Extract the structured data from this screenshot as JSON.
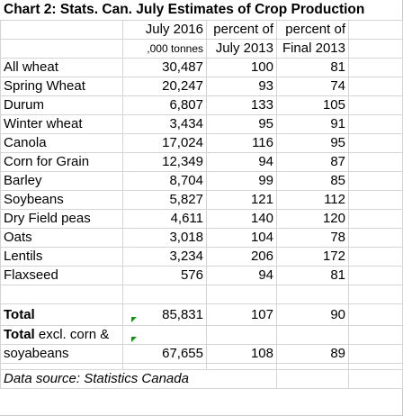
{
  "title": "Chart 2:  Stats. Can. July Estimates of Crop Production",
  "header": {
    "row1": [
      "",
      "July 2016",
      "percent of",
      "percent of"
    ],
    "row2": [
      "",
      ",000 tonnes",
      "July 2013",
      "Final 2013"
    ]
  },
  "rows": [
    {
      "crop": "All wheat",
      "tonnes": "30,487",
      "pct_july": "100",
      "pct_final": "81"
    },
    {
      "crop": "Spring Wheat",
      "tonnes": "20,247",
      "pct_july": "93",
      "pct_final": "74"
    },
    {
      "crop": "Durum",
      "tonnes": "6,807",
      "pct_july": "133",
      "pct_final": "105"
    },
    {
      "crop": "Winter wheat",
      "tonnes": "3,434",
      "pct_july": "95",
      "pct_final": "91"
    },
    {
      "crop": "Canola",
      "tonnes": "17,024",
      "pct_july": "116",
      "pct_final": "95"
    },
    {
      "crop": "Corn for Grain",
      "tonnes": "12,349",
      "pct_july": "94",
      "pct_final": "87"
    },
    {
      "crop": "Barley",
      "tonnes": "8,704",
      "pct_july": "99",
      "pct_final": "85"
    },
    {
      "crop": "Soybeans",
      "tonnes": "5,827",
      "pct_july": "121",
      "pct_final": "112"
    },
    {
      "crop": "Dry Field peas",
      "tonnes": "4,611",
      "pct_july": "140",
      "pct_final": "120"
    },
    {
      "crop": "Oats",
      "tonnes": "3,018",
      "pct_july": "104",
      "pct_final": "78"
    },
    {
      "crop": "Lentils",
      "tonnes": "3,234",
      "pct_july": "206",
      "pct_final": "172"
    },
    {
      "crop": "Flaxseed",
      "tonnes": "576",
      "pct_july": "94",
      "pct_final": "81"
    }
  ],
  "total": {
    "label": "Total",
    "tonnes": "85,831",
    "pct_july": "107",
    "pct_final": "90"
  },
  "total_excl": {
    "label_bold": "Total",
    "label_rest": " excl. corn &",
    "label_line2": "soyabeans",
    "tonnes": "67,655",
    "pct_july": "108",
    "pct_final": "89"
  },
  "source": "Data source:  Statistics Canada",
  "colors": {
    "gridline": "#d4d4d4",
    "comment_marker": "#1a8f1a"
  }
}
